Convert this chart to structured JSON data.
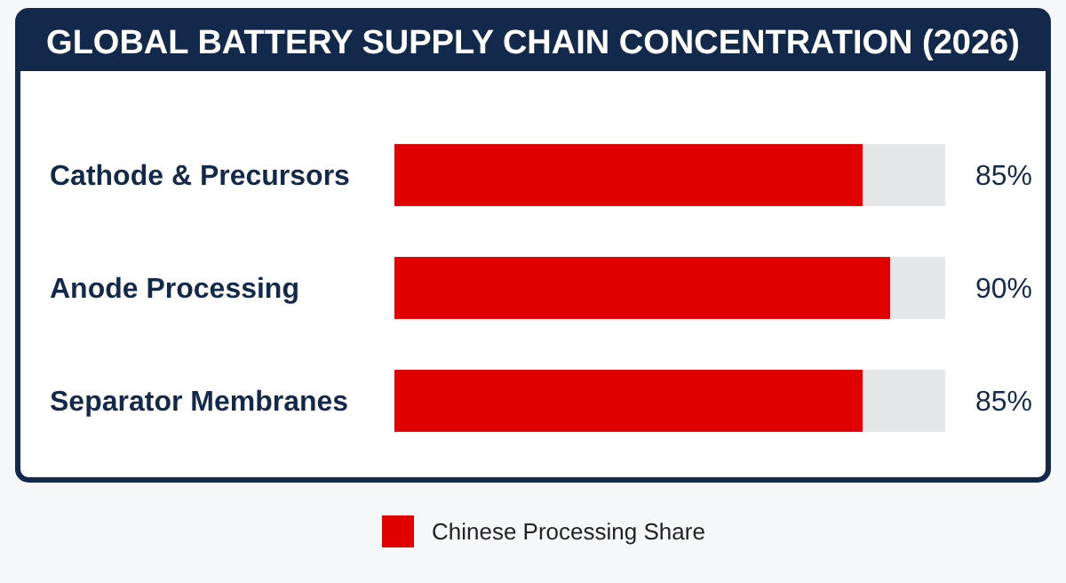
{
  "chart_data": {
    "type": "bar",
    "orientation": "horizontal",
    "title": "GLOBAL BATTERY SUPPLY CHAIN CONCENTRATION (2026)",
    "categories": [
      "Cathode & Precursors",
      "Anode Processing",
      "Separator Membranes"
    ],
    "series": [
      {
        "name": "Chinese Processing Share",
        "color": "#e00000",
        "values": [
          85,
          90,
          85
        ],
        "value_labels": [
          "85%",
          "90%",
          "85%"
        ]
      }
    ],
    "xlim": [
      0,
      100
    ],
    "legend": "bottom"
  }
}
